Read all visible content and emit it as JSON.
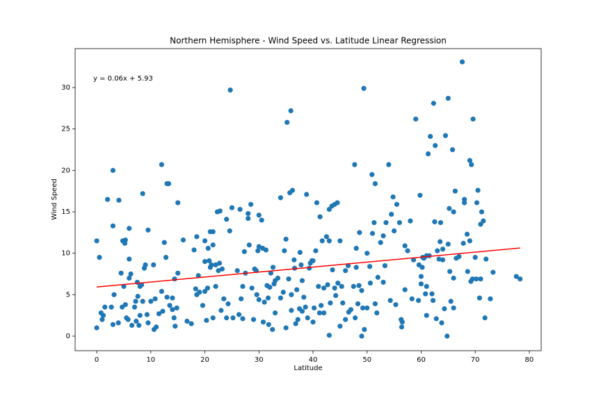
{
  "chart_data": {
    "type": "scatter",
    "title": "Northern Hemisphere - Wind Speed vs. Latitude Linear Regression",
    "x_label": "Latitude",
    "y_label": "Wind Speed",
    "annotation": "y = 0.06x + 5.93",
    "color": "#1f77b4",
    "grid": false,
    "xlim": [
      -4,
      82.2
    ],
    "ylim": [
      -1.76,
      34.7
    ],
    "xticks": [
      0,
      10,
      20,
      30,
      40,
      50,
      60,
      70,
      80
    ],
    "yticks": [
      0,
      5,
      10,
      15,
      20,
      25,
      30
    ],
    "x": [
      0,
      0,
      0.5,
      0.8,
      1,
      1.2,
      1.5,
      2,
      2.7,
      3,
      3,
      3,
      3.2,
      4,
      4.1,
      4.5,
      4.7,
      4.8,
      5,
      5.2,
      5.3,
      5.3,
      5.5,
      5.8,
      6,
      6,
      6,
      6.3,
      6.5,
      7,
      7.2,
      7.3,
      7.5,
      7.6,
      7.8,
      8,
      8,
      8.3,
      8.5,
      8.5,
      8.8,
      9,
      9.3,
      9.5,
      9.5,
      10,
      10.5,
      10.6,
      10.8,
      11,
      11.5,
      12,
      12,
      12.2,
      12.5,
      12.8,
      13,
      13,
      13.3,
      13.5,
      14,
      14,
      14.3,
      14.4,
      14.5,
      14.8,
      15,
      15,
      16,
      16.7,
      17.5,
      18,
      18.3,
      18.5,
      18.5,
      18.8,
      19,
      19.6,
      20,
      20,
      20,
      20.3,
      20.5,
      20.6,
      20.8,
      21,
      21,
      21.2,
      21.5,
      21.5,
      21.5,
      22,
      22,
      22.3,
      22.5,
      22.7,
      22.8,
      23,
      23.2,
      23.5,
      24,
      24,
      24.3,
      24.6,
      24.7,
      25,
      25.2,
      26,
      26.3,
      26.5,
      26.7,
      27,
      27,
      27.3,
      27.5,
      28,
      28,
      28.2,
      28.5,
      28.7,
      29,
      29.2,
      29.5,
      29.6,
      29.8,
      30,
      30,
      30,
      30.5,
      30.7,
      30.8,
      31,
      31.3,
      31.5,
      31.7,
      31.8,
      32,
      32.2,
      32.5,
      32.6,
      32.8,
      33,
      33,
      33.5,
      34,
      34,
      34.5,
      34.7,
      35,
      35,
      35.2,
      35.5,
      35.7,
      35.9,
      36,
      36,
      36.2,
      36.5,
      36.6,
      36.8,
      37,
      37.2,
      37.5,
      37.6,
      37.8,
      38,
      38,
      38.3,
      38.6,
      38.8,
      39,
      39.3,
      39.5,
      39.8,
      40,
      40,
      40.2,
      40.5,
      40.7,
      41,
      41.2,
      41.3,
      41.5,
      41.7,
      42,
      42,
      42.5,
      42.7,
      43,
      43,
      43,
      43.2,
      43.5,
      43.6,
      44,
      44,
      44.2,
      44.5,
      44.6,
      45,
      45,
      45.3,
      45.5,
      46,
      46,
      46.5,
      46.6,
      47,
      47.5,
      47.7,
      47.8,
      48,
      48,
      48.3,
      48.5,
      48.6,
      49,
      49,
      49.2,
      49.4,
      49.5,
      50,
      50,
      50.5,
      50.6,
      50.9,
      51,
      51.3,
      51.5,
      51.5,
      51.8,
      52,
      52.5,
      53,
      53,
      53.3,
      53.5,
      54,
      54.3,
      54.5,
      54.8,
      55,
      55.3,
      55.5,
      56,
      56.3,
      56.4,
      56.5,
      57,
      57,
      57.5,
      58,
      58.3,
      58.6,
      59,
      59.5,
      59.6,
      59.8,
      60,
      60,
      60.2,
      60.3,
      60.5,
      60.8,
      61,
      61,
      61,
      61.3,
      61.5,
      61.7,
      62,
      62.2,
      62.3,
      62.5,
      62.6,
      62.8,
      63,
      63.3,
      63.5,
      63.6,
      63.8,
      64,
      64,
      64.3,
      64.5,
      64.8,
      65,
      65,
      65.2,
      65.3,
      65.5,
      65.8,
      66,
      66,
      66,
      66.3,
      66.5,
      67,
      67.6,
      67.8,
      68,
      68,
      68.5,
      68.6,
      69,
      69,
      69.2,
      69.3,
      69.5,
      69.6,
      70,
      70.2,
      70.3,
      70.5,
      70.8,
      71,
      71,
      71.2,
      71.5,
      71.8,
      72,
      72.8,
      73.3,
      77.6,
      78.3
    ],
    "values": [
      11.5,
      1,
      9.5,
      2.8,
      2,
      2.5,
      3.5,
      16.5,
      3.5,
      20,
      13.3,
      1.4,
      5,
      1.6,
      16.4,
      7.6,
      3.5,
      11.5,
      6,
      11.2,
      11.6,
      3.8,
      2.2,
      2,
      7,
      13,
      9.3,
      7.5,
      1.3,
      3.5,
      4.2,
      1.8,
      6.5,
      4.8,
      1.3,
      6,
      2.5,
      6.2,
      17.2,
      4.2,
      8.2,
      8.6,
      2.6,
      12.8,
      1.6,
      4.2,
      8.6,
      0.8,
      4.5,
      1.1,
      2.7,
      20.7,
      5.4,
      3,
      11.3,
      9.5,
      4.7,
      18.4,
      18.4,
      3.7,
      3.2,
      4.6,
      2.2,
      6.9,
      1.2,
      3.4,
      7.6,
      16.1,
      11.6,
      1.8,
      1.5,
      10.4,
      5.7,
      5,
      12,
      7.3,
      5.3,
      3.7,
      9,
      11.5,
      5.4,
      1.9,
      5.8,
      10.6,
      9.1,
      12.6,
      8.3,
      8.6,
      12.6,
      11,
      2.2,
      6,
      8.6,
      15,
      7.9,
      8.8,
      15.1,
      3.1,
      8.1,
      4.5,
      14.1,
      2.2,
      3.9,
      12.7,
      29.7,
      15.5,
      2.2,
      7.9,
      2.6,
      15.3,
      4.5,
      6,
      2.1,
      10.2,
      7.6,
      14.8,
      14.2,
      11,
      15.9,
      5.8,
      2,
      8.1,
      7.9,
      5,
      10.3,
      10.8,
      4.4,
      14.6,
      14,
      10.6,
      1.7,
      4.1,
      10.4,
      6.1,
      4.6,
      1.4,
      5.9,
      7.6,
      0.8,
      8.3,
      6.3,
      6.7,
      2.8,
      7,
      4.6,
      16.7,
      5.3,
      10.3,
      11.7,
      1,
      25.8,
      6.9,
      17.3,
      27.2,
      5,
      3.1,
      17.6,
      9.2,
      8.2,
      1.5,
      5.6,
      2,
      3.3,
      10.1,
      8.6,
      6.7,
      3,
      4.7,
      3.5,
      17.1,
      2.2,
      8.2,
      8.8,
      9.1,
      9.1,
      1.7,
      3.4,
      10.3,
      16.1,
      6,
      2.8,
      14.4,
      3.7,
      11.5,
      5.8,
      2.8,
      12,
      6.2,
      15.3,
      0.1,
      11.5,
      4,
      15.7,
      8,
      5.8,
      15.9,
      4.9,
      16.1,
      6.4,
      11.5,
      1.2,
      6,
      4,
      7.9,
      2,
      8.5,
      2.9,
      3.2,
      6,
      20.7,
      2.2,
      10.6,
      8.3,
      3.9,
      6.1,
      12.5,
      0,
      5.5,
      3.4,
      29.9,
      0.8,
      10,
      3.4,
      8.4,
      6.4,
      19.5,
      12.4,
      13.7,
      18.4,
      3.9,
      2.8,
      7.1,
      11.3,
      12.1,
      6.5,
      8.5,
      13.7,
      20.7,
      4.3,
      14.7,
      16.8,
      12.7,
      3.8,
      15.9,
      13.7,
      2,
      1.1,
      1.7,
      5.6,
      10.9,
      10.3,
      13.9,
      4.5,
      9.2,
      26.2,
      4.3,
      8.6,
      17,
      7.2,
      6.3,
      8.3,
      9.5,
      9.4,
      5.1,
      6,
      9.7,
      2.5,
      22,
      9.7,
      24.1,
      5.1,
      4.3,
      28.1,
      13.8,
      23,
      2.1,
      10.3,
      9.3,
      11.4,
      13.7,
      1.6,
      10.5,
      9.2,
      3.3,
      24.2,
      0,
      28.7,
      11.1,
      15.4,
      7.8,
      4.2,
      22.5,
      15,
      7,
      3.4,
      17.5,
      9.4,
      9.6,
      33.1,
      11.2,
      16.5,
      16.1,
      12.3,
      7.8,
      21.2,
      11.5,
      6.6,
      20.7,
      6.9,
      26.2,
      9.5,
      6.9,
      16.1,
      17.6,
      4.6,
      13.5,
      6.9,
      15,
      13.9,
      2.2,
      9.3,
      4.5,
      7.7,
      7.2,
      6.9
    ],
    "regression": {
      "color": "#ff0000",
      "x": [
        0,
        78.3
      ],
      "values": [
        5.93,
        10.63
      ]
    }
  }
}
